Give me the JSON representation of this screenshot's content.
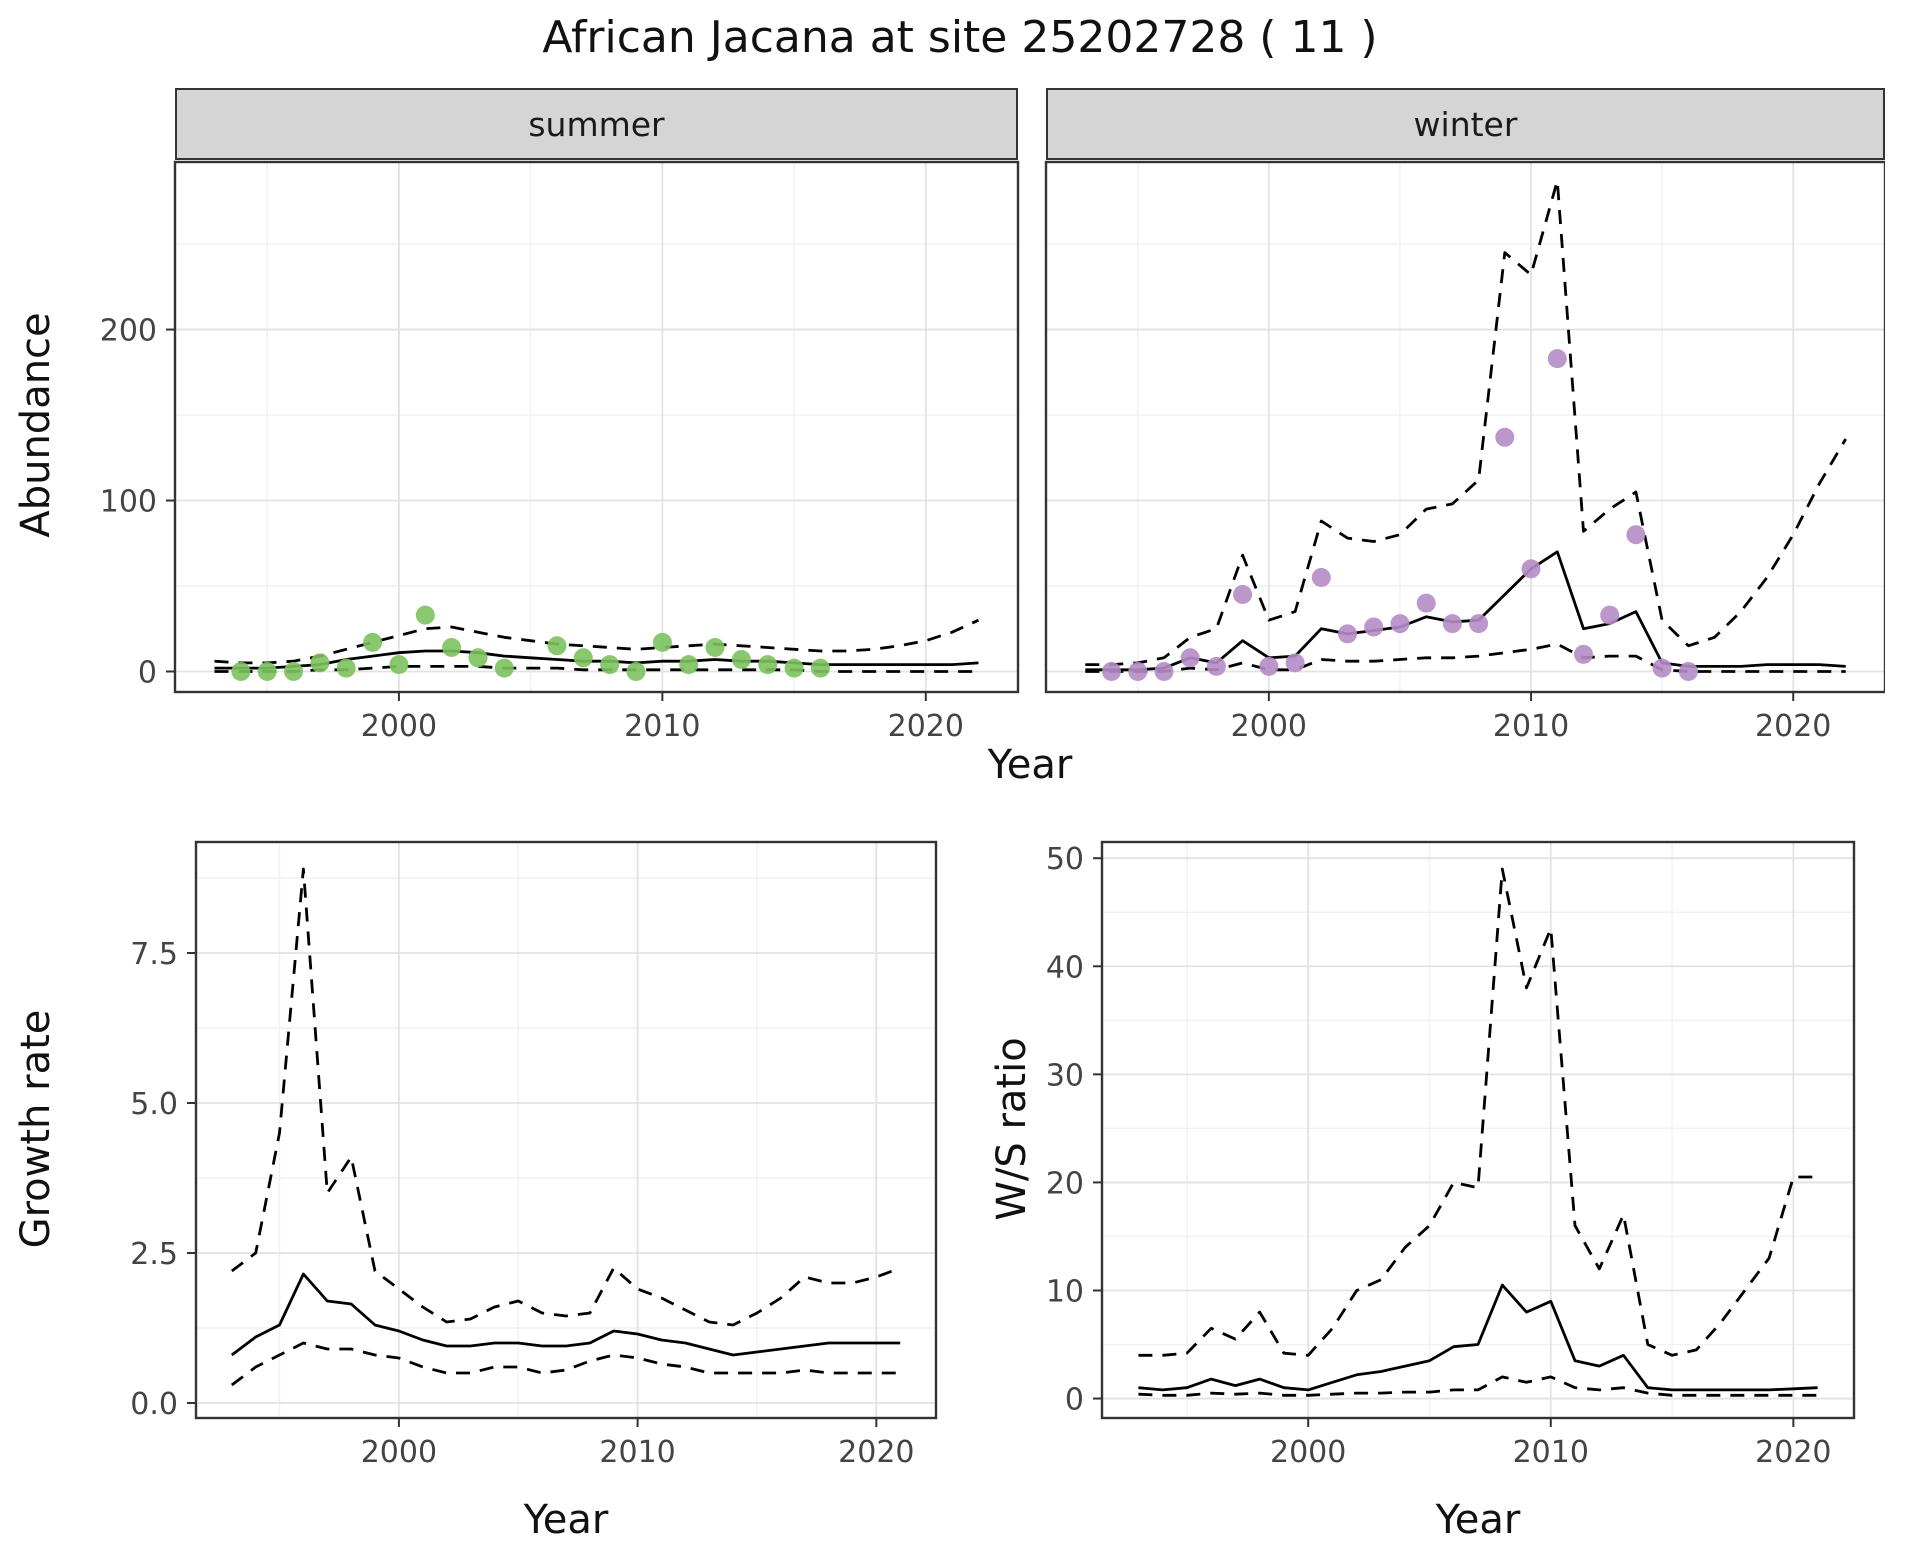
{
  "title": "African Jacana at site 25202728 ( 11 )",
  "facets": [
    {
      "label": "summer"
    },
    {
      "label": "winter"
    }
  ],
  "axis_titles": {
    "abundance": "Abundance",
    "growth": "Growth rate",
    "ws": "W/S ratio",
    "year": "Year"
  },
  "colors": {
    "background": "#ffffff",
    "grid_major": "#e2e2e2",
    "grid_minor": "#f1f1f1",
    "panel_border": "#333333",
    "strip_bg": "#d5d5d5",
    "line": "#000000",
    "summer_point": "#7cc25e",
    "winter_point": "#b48cc6",
    "tick_text": "#444444"
  },
  "chart_data": [
    {
      "id": "abundance-summer",
      "type": "line",
      "title": "summer facet: abundance vs year",
      "xlabel": "Year",
      "ylabel": "Abundance",
      "xlim": [
        1991.5,
        2023.5
      ],
      "ylim": [
        -12,
        298
      ],
      "xticks": [
        2000,
        2010,
        2020
      ],
      "xtick_labels": [
        "2000",
        "2010",
        "2020"
      ],
      "xminor": [
        1995,
        2005,
        2015
      ],
      "ytick_values": [
        0,
        100,
        200
      ],
      "ytick_labels": [
        "0",
        "100",
        "200"
      ],
      "yminor": [
        50,
        150,
        250
      ],
      "show_y_labels": true,
      "x": [
        1993,
        1994,
        1995,
        1996,
        1997,
        1998,
        1999,
        2000,
        2001,
        2002,
        2003,
        2004,
        2005,
        2006,
        2007,
        2008,
        2009,
        2010,
        2011,
        2012,
        2013,
        2014,
        2015,
        2016,
        2017,
        2018,
        2019,
        2020,
        2021,
        2022
      ],
      "series": [
        {
          "name": "lower-ci",
          "style": "dashed",
          "y": [
            0,
            0,
            0,
            0,
            1,
            1,
            2,
            3,
            3,
            3,
            3,
            2,
            2,
            2,
            1,
            1,
            1,
            1,
            1,
            1,
            1,
            1,
            1,
            0,
            0,
            0,
            0,
            0,
            0,
            0
          ]
        },
        {
          "name": "upper-ci",
          "style": "dashed",
          "y": [
            6,
            5,
            5,
            6,
            9,
            13,
            17,
            21,
            25,
            26,
            23,
            20,
            18,
            16,
            15,
            14,
            13,
            14,
            15,
            16,
            15,
            14,
            13,
            12,
            12,
            13,
            15,
            18,
            23,
            30
          ]
        },
        {
          "name": "median",
          "style": "solid",
          "y": [
            2,
            2,
            2,
            3,
            4,
            7,
            9,
            11,
            12,
            12,
            11,
            9,
            8,
            7,
            6,
            6,
            5,
            6,
            6,
            7,
            6,
            6,
            5,
            4,
            4,
            4,
            4,
            4,
            4,
            5
          ]
        },
        {
          "name": "observed-counts",
          "style": "points",
          "color": "#7cc25e",
          "x": [
            1994,
            1995,
            1996,
            1997,
            1998,
            1999,
            2000,
            2001,
            2002,
            2003,
            2004,
            2006,
            2007,
            2008,
            2009,
            2010,
            2011,
            2012,
            2013,
            2014,
            2015,
            2016
          ],
          "y": [
            0,
            0,
            0,
            5,
            2,
            17,
            4,
            33,
            14,
            8,
            2,
            15,
            8,
            4,
            0,
            17,
            4,
            14,
            7,
            4,
            2,
            2
          ]
        }
      ]
    },
    {
      "id": "abundance-winter",
      "type": "line",
      "title": "winter facet: abundance vs year",
      "xlabel": "Year",
      "ylabel": "Abundance",
      "xlim": [
        1991.5,
        2023.5
      ],
      "ylim": [
        -12,
        298
      ],
      "xticks": [
        2000,
        2010,
        2020
      ],
      "xtick_labels": [
        "2000",
        "2010",
        "2020"
      ],
      "xminor": [
        1995,
        2005,
        2015
      ],
      "ytick_values": [
        0,
        100,
        200
      ],
      "ytick_labels": [
        "0",
        "100",
        "200"
      ],
      "yminor": [
        50,
        150,
        250
      ],
      "show_y_labels": false,
      "x": [
        1993,
        1994,
        1995,
        1996,
        1997,
        1998,
        1999,
        2000,
        2001,
        2002,
        2003,
        2004,
        2005,
        2006,
        2007,
        2008,
        2009,
        2010,
        2011,
        2012,
        2013,
        2014,
        2015,
        2016,
        2017,
        2018,
        2019,
        2020,
        2021,
        2022
      ],
      "series": [
        {
          "name": "lower-ci",
          "style": "dashed",
          "y": [
            0,
            0,
            0,
            0,
            2,
            1,
            5,
            1,
            1,
            7,
            6,
            6,
            7,
            8,
            8,
            9,
            11,
            13,
            16,
            8,
            9,
            9,
            1,
            0,
            0,
            0,
            0,
            0,
            0,
            0
          ]
        },
        {
          "name": "upper-ci",
          "style": "dashed",
          "y": [
            4,
            4,
            5,
            8,
            20,
            25,
            68,
            30,
            35,
            88,
            78,
            76,
            80,
            95,
            98,
            112,
            245,
            232,
            287,
            82,
            95,
            105,
            30,
            15,
            20,
            35,
            55,
            80,
            110,
            136
          ]
        },
        {
          "name": "median",
          "style": "solid",
          "y": [
            1,
            1,
            1,
            2,
            8,
            5,
            18,
            8,
            9,
            25,
            22,
            24,
            26,
            32,
            29,
            30,
            45,
            60,
            70,
            25,
            28,
            35,
            5,
            3,
            3,
            3,
            4,
            4,
            4,
            3
          ]
        },
        {
          "name": "observed-counts",
          "style": "points",
          "color": "#b48cc6",
          "x": [
            1994,
            1995,
            1996,
            1997,
            1998,
            1999,
            2000,
            2001,
            2002,
            2003,
            2004,
            2005,
            2006,
            2007,
            2008,
            2009,
            2010,
            2011,
            2012,
            2013,
            2014,
            2015,
            2016
          ],
          "y": [
            0,
            0,
            0,
            8,
            3,
            45,
            3,
            5,
            55,
            22,
            26,
            28,
            40,
            28,
            28,
            137,
            60,
            183,
            10,
            33,
            80,
            2,
            0
          ]
        }
      ]
    },
    {
      "id": "growth-rate",
      "type": "line",
      "title": "growth rate vs year",
      "xlabel": "Year",
      "ylabel": "Growth rate",
      "xlim": [
        1991.5,
        2022.5
      ],
      "ylim": [
        -0.25,
        9.35
      ],
      "xticks": [
        2000,
        2010,
        2020
      ],
      "xtick_labels": [
        "2000",
        "2010",
        "2020"
      ],
      "xminor": [
        1995,
        2005,
        2015
      ],
      "ytick_values": [
        0,
        2.5,
        5,
        7.5
      ],
      "ytick_labels": [
        "0.0",
        "2.5",
        "5.0",
        "7.5"
      ],
      "yminor": [
        1.25,
        3.75,
        6.25,
        8.75
      ],
      "show_y_labels": true,
      "x": [
        1993,
        1994,
        1995,
        1996,
        1997,
        1998,
        1999,
        2000,
        2001,
        2002,
        2003,
        2004,
        2005,
        2006,
        2007,
        2008,
        2009,
        2010,
        2011,
        2012,
        2013,
        2014,
        2015,
        2016,
        2017,
        2018,
        2019,
        2020,
        2021
      ],
      "series": [
        {
          "name": "lower-ci",
          "style": "dashed",
          "y": [
            0.3,
            0.6,
            0.8,
            1.0,
            0.9,
            0.9,
            0.8,
            0.75,
            0.6,
            0.5,
            0.5,
            0.6,
            0.6,
            0.5,
            0.55,
            0.7,
            0.8,
            0.75,
            0.65,
            0.6,
            0.5,
            0.5,
            0.5,
            0.5,
            0.55,
            0.5,
            0.5,
            0.5,
            0.5
          ]
        },
        {
          "name": "upper-ci",
          "style": "dashed",
          "y": [
            2.2,
            2.5,
            4.5,
            8.9,
            3.5,
            4.1,
            2.2,
            1.9,
            1.6,
            1.35,
            1.4,
            1.6,
            1.7,
            1.5,
            1.45,
            1.5,
            2.25,
            1.9,
            1.75,
            1.55,
            1.35,
            1.3,
            1.5,
            1.75,
            2.1,
            2.0,
            2.0,
            2.1,
            2.25
          ]
        },
        {
          "name": "median",
          "style": "solid",
          "y": [
            0.8,
            1.1,
            1.3,
            2.15,
            1.7,
            1.65,
            1.3,
            1.2,
            1.05,
            0.95,
            0.95,
            1.0,
            1.0,
            0.95,
            0.95,
            1.0,
            1.2,
            1.15,
            1.05,
            1.0,
            0.9,
            0.8,
            0.85,
            0.9,
            0.95,
            1.0,
            1.0,
            1.0,
            1.0
          ]
        }
      ]
    },
    {
      "id": "ws-ratio",
      "type": "line",
      "title": "winter/summer ratio vs year",
      "xlabel": "Year",
      "ylabel": "W/S ratio",
      "xlim": [
        1991.5,
        2022.5
      ],
      "ylim": [
        -1.8,
        51.5
      ],
      "xticks": [
        2000,
        2010,
        2020
      ],
      "xtick_labels": [
        "2000",
        "2010",
        "2020"
      ],
      "xminor": [
        1995,
        2005,
        2015
      ],
      "ytick_values": [
        0,
        10,
        20,
        30,
        40,
        50
      ],
      "ytick_labels": [
        "0",
        "10",
        "20",
        "30",
        "40",
        "50"
      ],
      "yminor": [
        5,
        15,
        25,
        35,
        45
      ],
      "show_y_labels": true,
      "x": [
        1993,
        1994,
        1995,
        1996,
        1997,
        1998,
        1999,
        2000,
        2001,
        2002,
        2003,
        2004,
        2005,
        2006,
        2007,
        2008,
        2009,
        2010,
        2011,
        2012,
        2013,
        2014,
        2015,
        2016,
        2017,
        2018,
        2019,
        2020,
        2021
      ],
      "series": [
        {
          "name": "lower-ci",
          "style": "dashed",
          "y": [
            0.4,
            0.3,
            0.3,
            0.5,
            0.4,
            0.5,
            0.3,
            0.3,
            0.4,
            0.5,
            0.5,
            0.6,
            0.6,
            0.8,
            0.8,
            2,
            1.5,
            2,
            1,
            0.8,
            1,
            0.5,
            0.3,
            0.3,
            0.3,
            0.3,
            0.3,
            0.3,
            0.3
          ]
        },
        {
          "name": "upper-ci",
          "style": "dashed",
          "y": [
            4,
            4,
            4.2,
            6.5,
            5.5,
            8,
            4.2,
            4,
            6.5,
            10,
            11,
            14,
            16,
            20,
            19.5,
            49,
            38,
            43.5,
            16,
            12,
            17,
            5,
            4,
            4.5,
            7,
            10,
            13,
            20.5,
            20.5
          ]
        },
        {
          "name": "median",
          "style": "solid",
          "y": [
            1,
            0.8,
            1,
            1.8,
            1.2,
            1.8,
            1,
            0.8,
            1.5,
            2.2,
            2.5,
            3,
            3.5,
            4.8,
            5,
            10.5,
            8,
            9,
            3.5,
            3,
            4,
            1,
            0.8,
            0.8,
            0.8,
            0.8,
            0.8,
            0.9,
            1
          ]
        }
      ]
    }
  ]
}
